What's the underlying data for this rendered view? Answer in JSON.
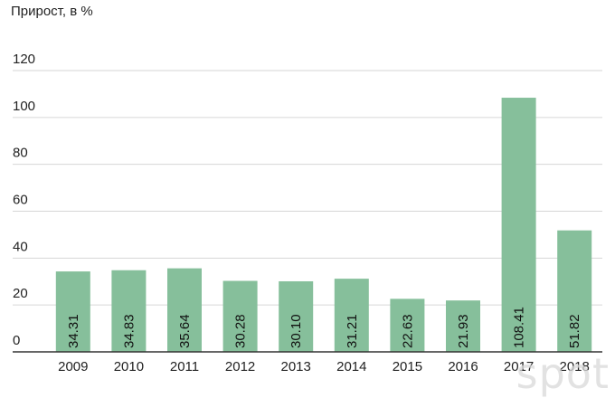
{
  "chart_data": {
    "type": "bar",
    "title": "Прирост, в %",
    "categories": [
      "2009",
      "2010",
      "2011",
      "2012",
      "2013",
      "2014",
      "2015",
      "2016",
      "2017",
      "2018"
    ],
    "values": [
      34.31,
      34.83,
      35.64,
      30.28,
      30.1,
      31.21,
      22.63,
      21.93,
      108.41,
      51.82
    ],
    "value_labels": [
      "34.31",
      "34.83",
      "35.64",
      "30.28",
      "30.10",
      "31.21",
      "22.63",
      "21.93",
      "108.41",
      "51.82"
    ],
    "y_ticks": [
      "0",
      "20",
      "40",
      "60",
      "80",
      "100",
      "120"
    ],
    "ylim": [
      0,
      120
    ],
    "grid": true,
    "legend": "none",
    "bar_color": "#86bf9b"
  },
  "watermark": "spot"
}
